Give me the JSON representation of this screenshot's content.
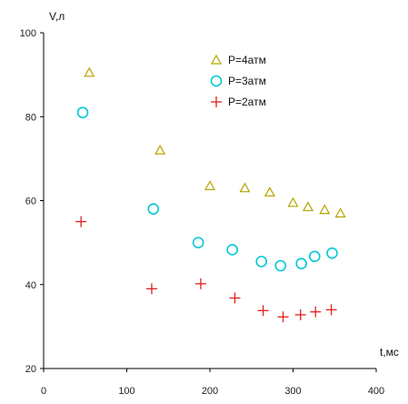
{
  "chart_data": {
    "type": "scatter",
    "title": "",
    "xlabel": "t,мс",
    "ylabel": "V,л",
    "xlim": [
      0,
      400
    ],
    "ylim": [
      20,
      100
    ],
    "x_ticks": [
      0,
      100,
      200,
      300,
      400
    ],
    "y_ticks": [
      20,
      40,
      60,
      80,
      100
    ],
    "grid": false,
    "legend_position": "top-center",
    "series": [
      {
        "name": "P=4атм",
        "marker": "triangle",
        "color": "#b8a400",
        "x": [
          55,
          140,
          200,
          242,
          272,
          300,
          318,
          338,
          357
        ],
        "y": [
          90.5,
          72,
          63.5,
          63,
          62,
          59.5,
          58.5,
          57.8,
          57
        ]
      },
      {
        "name": "P=3атм",
        "marker": "circle",
        "color": "#00c8d8",
        "x": [
          47,
          132,
          186,
          227,
          262,
          285,
          310,
          326,
          347
        ],
        "y": [
          81,
          58,
          50,
          48.3,
          45.5,
          44.5,
          45,
          46.7,
          47.5
        ]
      },
      {
        "name": "P=2атм",
        "marker": "plus",
        "color": "#e02020",
        "x": [
          45,
          130,
          189,
          230,
          264,
          288,
          309,
          327,
          346
        ],
        "y": [
          55,
          39,
          40.2,
          36.8,
          33.8,
          32.3,
          32.8,
          33.5,
          34
        ]
      }
    ]
  }
}
